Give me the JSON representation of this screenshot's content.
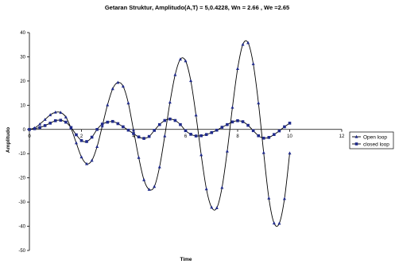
{
  "chart_data": {
    "type": "line",
    "title": "Getaran Struktur, Amplitudo(A,T) = 5,0.4228, Wn = 2.66 , We =2.65",
    "xlabel": "Time",
    "ylabel": "Amplitudo",
    "xlim": [
      0,
      12
    ],
    "ylim": [
      -50,
      40
    ],
    "xticks": [
      0,
      2,
      4,
      6,
      8,
      10,
      12
    ],
    "yticks": [
      -50,
      -40,
      -30,
      -20,
      -10,
      0,
      10,
      20,
      30,
      40
    ],
    "grid": false,
    "legend_position": "right",
    "x": [
      0,
      0.2,
      0.4,
      0.6,
      0.8,
      1.0,
      1.2,
      1.4,
      1.6,
      1.8,
      2.0,
      2.2,
      2.4,
      2.6,
      2.8,
      3.0,
      3.2,
      3.4,
      3.6,
      3.8,
      4.0,
      4.2,
      4.4,
      4.6,
      4.8,
      5.0,
      5.2,
      5.4,
      5.6,
      5.8,
      6.0,
      6.2,
      6.4,
      6.6,
      6.8,
      7.0,
      7.2,
      7.4,
      7.6,
      7.8,
      8.0,
      8.2,
      8.4,
      8.6,
      8.8,
      9.0,
      9.2,
      9.4,
      9.6,
      9.8,
      10.0
    ],
    "series": [
      {
        "name": "Open loop",
        "marker": "triangle",
        "values": [
          0,
          0.6,
          2.2,
          4.1,
          6.0,
          7.1,
          7.0,
          5.1,
          0.5,
          -5.6,
          -11.4,
          -14.2,
          -12.8,
          -7.1,
          1.4,
          10.1,
          16.8,
          19.4,
          17.8,
          10.9,
          -0.3,
          -11.6,
          -20.8,
          -24.8,
          -23.6,
          -15.5,
          -2.7,
          11.2,
          22.6,
          29.0,
          28.3,
          20.1,
          5.9,
          -10.5,
          -24.6,
          -32.2,
          -32.4,
          -24.0,
          -9.0,
          9.1,
          25.1,
          35.1,
          35.8,
          27.1,
          10.9,
          -9.6,
          -28.4,
          -38.7,
          -38.8,
          -28.6,
          -9.8
        ]
      },
      {
        "name": "closed loop",
        "marker": "square",
        "values": [
          0,
          0.3,
          0.8,
          1.6,
          2.6,
          3.6,
          3.8,
          3.0,
          0.8,
          -2.2,
          -4.6,
          -5.0,
          -3.2,
          0,
          2.2,
          3.0,
          3.3,
          2.4,
          1.1,
          -0.3,
          -1.7,
          -3.1,
          -3.7,
          -2.9,
          -0.4,
          2.0,
          3.7,
          4.3,
          3.7,
          2.0,
          -0.5,
          -2.0,
          -2.7,
          -2.6,
          -2.1,
          -1.3,
          -0.3,
          0.9,
          2.0,
          3.1,
          3.6,
          3.2,
          1.7,
          -0.5,
          -2.6,
          -3.6,
          -3.3,
          -2.1,
          -0.6,
          1.1,
          2.6
        ]
      }
    ],
    "colors": {
      "line": "#000000",
      "marker": "#1f2a8a",
      "axis": "#000000"
    }
  }
}
